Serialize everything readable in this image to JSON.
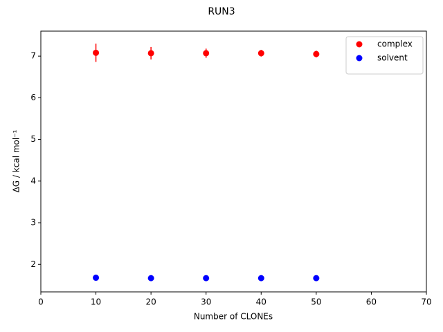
{
  "chart_data": {
    "type": "scatter",
    "title": "RUN3",
    "x_label": "Number of CLONEs",
    "y_label": "ΔG / kcal mol⁻¹",
    "x": [
      10,
      20,
      30,
      40,
      50
    ],
    "series": [
      {
        "name": "complex",
        "color": "#ff0000",
        "values": [
          7.08,
          7.07,
          7.07,
          7.07,
          7.05
        ],
        "errors": [
          0.22,
          0.15,
          0.11,
          0.08,
          0.08
        ]
      },
      {
        "name": "solvent",
        "color": "#0000ff",
        "values": [
          1.68,
          1.67,
          1.67,
          1.67,
          1.67
        ],
        "errors": [
          0.01,
          0.01,
          0.01,
          0.01,
          0.01
        ]
      }
    ],
    "xlim": [
      0,
      70
    ],
    "xticks": [
      0,
      10,
      20,
      30,
      40,
      50,
      60,
      70
    ],
    "ylim": [
      1.34,
      7.6
    ],
    "yticks": [
      2,
      3,
      4,
      5,
      6,
      7
    ],
    "legend": "upper right",
    "grid": false
  }
}
